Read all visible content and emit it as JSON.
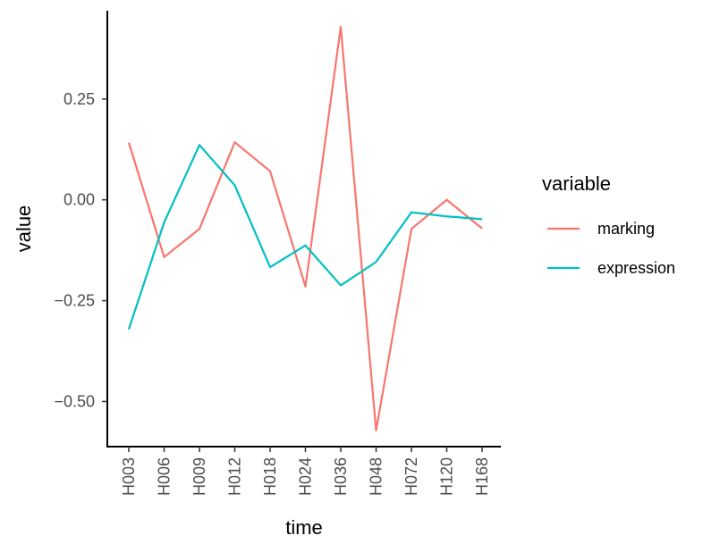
{
  "chart_data": {
    "type": "line",
    "categories": [
      "H003",
      "H006",
      "H009",
      "H012",
      "H018",
      "H024",
      "H036",
      "H048",
      "H072",
      "H120",
      "H168"
    ],
    "series": [
      {
        "name": "marking",
        "color": "#F8766D",
        "values": [
          0.142,
          -0.142,
          -0.072,
          0.143,
          0.071,
          -0.215,
          0.429,
          -0.572,
          -0.072,
          0.0,
          -0.071
        ]
      },
      {
        "name": "expression",
        "color": "#00BFC4",
        "values": [
          -0.321,
          -0.056,
          0.136,
          0.036,
          -0.167,
          -0.113,
          -0.212,
          -0.154,
          -0.031,
          -0.041,
          -0.048
        ]
      }
    ],
    "xlabel": "time",
    "ylabel": "value",
    "ylim": [
      -0.612,
      0.469
    ],
    "yticks": [
      0.25,
      0.0,
      -0.25,
      -0.5
    ],
    "ytick_labels": [
      "0.25",
      "0.00",
      "−0.25",
      "−0.50"
    ],
    "legend": {
      "title": "variable",
      "position": "right"
    },
    "grid": false
  }
}
